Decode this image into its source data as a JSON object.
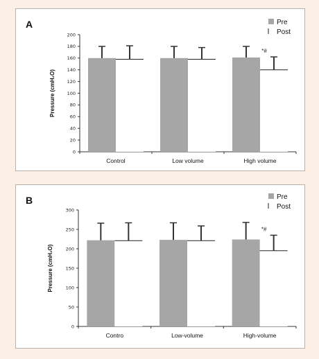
{
  "chart_data": [
    {
      "type": "bar",
      "panel_label": "A",
      "ylabel": "Pressure (cmH₂O)",
      "ylim": [
        0,
        200
      ],
      "yticks": [
        0,
        20,
        40,
        60,
        80,
        100,
        120,
        140,
        160,
        180,
        200
      ],
      "categories": [
        "Control",
        "Low volume",
        "High volume"
      ],
      "series": [
        {
          "name": "Pre",
          "color": "#a6a6a6",
          "values": [
            160,
            160,
            161
          ],
          "errors": [
            20,
            20,
            19
          ]
        },
        {
          "name": "Post",
          "color": "#ffffff",
          "values": [
            158,
            158,
            140
          ],
          "errors": [
            23,
            20,
            22
          ]
        }
      ],
      "annotations": [
        {
          "category": "High volume",
          "text": "*#"
        }
      ],
      "legend": "top-right"
    },
    {
      "type": "bar",
      "panel_label": "B",
      "ylabel": "Pressure (cmH₂O)",
      "ylim": [
        0,
        300
      ],
      "yticks": [
        0,
        50,
        100,
        150,
        200,
        250,
        300
      ],
      "categories": [
        "Contro",
        "Low-volume",
        "High-volume"
      ],
      "series": [
        {
          "name": "Pre",
          "color": "#a6a6a6",
          "values": [
            222,
            223,
            224
          ],
          "errors": [
            44,
            44,
            44
          ]
        },
        {
          "name": "Post",
          "color": "#ffffff",
          "values": [
            221,
            221,
            195
          ],
          "errors": [
            46,
            38,
            40
          ]
        }
      ],
      "annotations": [
        {
          "category": "High-volume",
          "text": "*#"
        }
      ],
      "legend": "top-right"
    }
  ]
}
